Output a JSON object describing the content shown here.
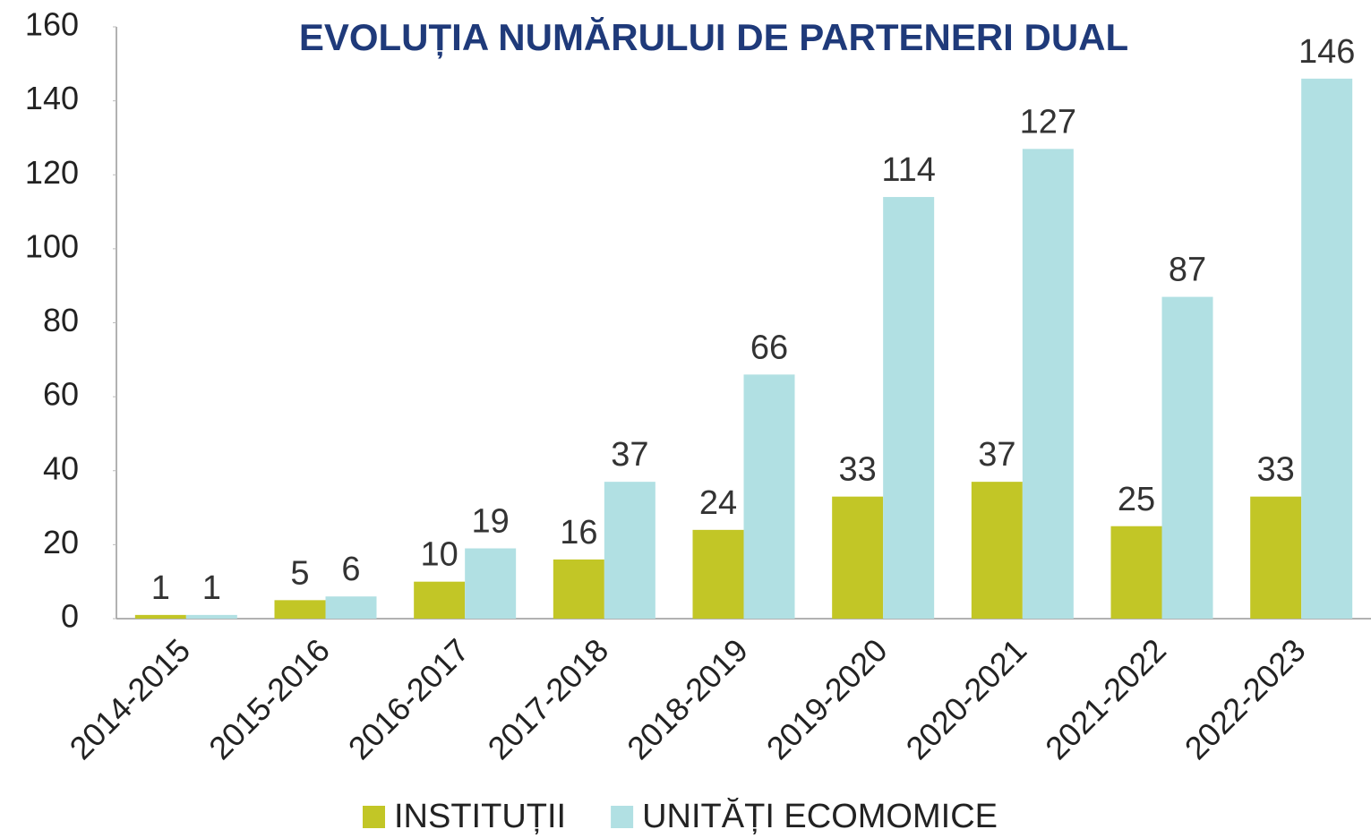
{
  "chart_data": {
    "type": "bar",
    "title": "EVOLUȚIA NUMĂRULUI DE PARTENERI DUAL",
    "categories": [
      "2014-2015",
      "2015-2016",
      "2016-2017",
      "2017-2018",
      "2018-2019",
      "2019-2020",
      "2020-2021",
      "2021-2022",
      "2022-2023"
    ],
    "series": [
      {
        "name": "INSTITUȚII",
        "color": "#c2c626",
        "values": [
          1,
          5,
          10,
          16,
          24,
          33,
          37,
          25,
          33
        ]
      },
      {
        "name": "UNITĂȚI ECOMOMICE",
        "color": "#b1e0e3",
        "values": [
          1,
          6,
          19,
          37,
          66,
          114,
          127,
          87,
          146
        ]
      }
    ],
    "ylim": [
      0,
      160
    ],
    "yticks": [
      0,
      20,
      40,
      60,
      80,
      100,
      120,
      140,
      160
    ],
    "grid": false,
    "legend": "bottom"
  }
}
